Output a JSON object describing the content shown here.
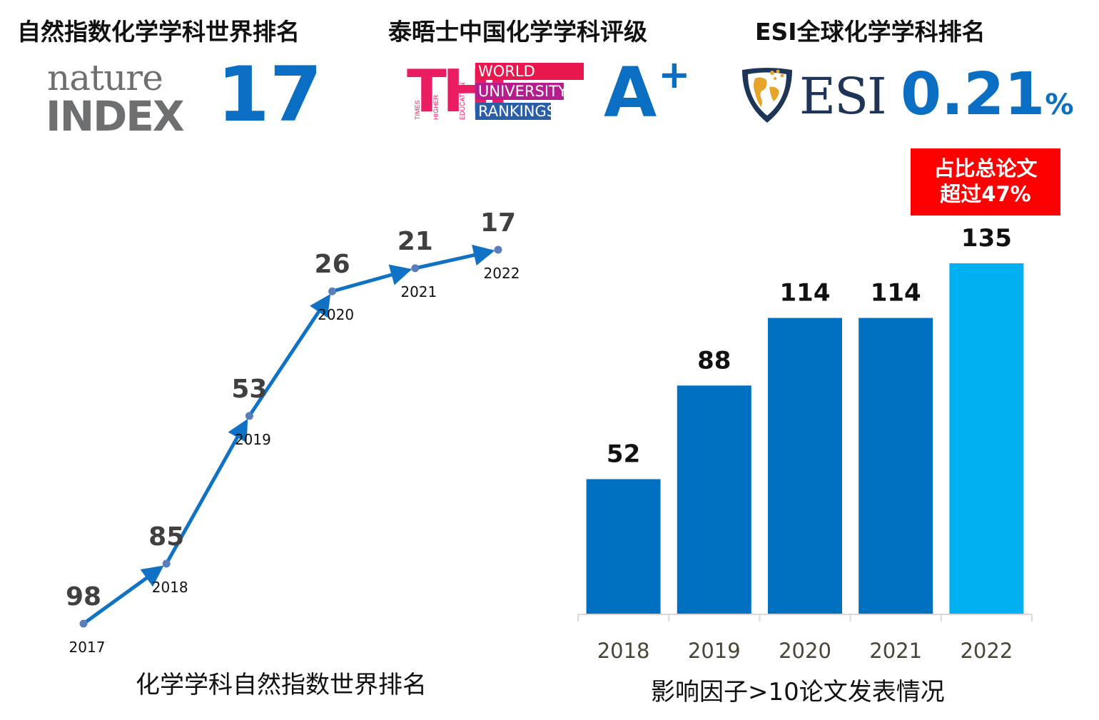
{
  "headers": {
    "nature_index": "自然指数化学学科世界排名",
    "the": "泰晤士中国化学学科评级",
    "esi": "ESI全球化学学科排名"
  },
  "nature_index_logo": {
    "line1": "nature",
    "line2": "INDEX"
  },
  "the_logo": {
    "letters": "THE",
    "small_words": [
      "TIMES",
      "HIGHER",
      "EDUCATION"
    ],
    "bands": [
      "WORLD",
      "UNIVERSITY",
      "RANKINGS"
    ],
    "band_colors": [
      "#e9174d",
      "#b51c8e",
      "#2b5ea8"
    ]
  },
  "esi_logo": {
    "text": "ESI"
  },
  "stats": {
    "nature_rank": "17",
    "the_grade": "A",
    "the_grade_sup": "+",
    "esi_percent": "0.21",
    "esi_percent_unit": "%"
  },
  "callout": {
    "line1": "占比总论文",
    "line2": "超过47%"
  },
  "colors": {
    "accent": "#0a6fc2",
    "bar": "#0070c0",
    "bar_highlight": "#00b0f0",
    "callout": "#fe0000",
    "line": "#1072c4",
    "point": "#5a7fb8"
  },
  "chart_data": [
    {
      "type": "line",
      "title": "化学学科自然指数世界排名",
      "x": [
        "2017",
        "2018",
        "2019",
        "2020",
        "2021",
        "2022"
      ],
      "values": [
        98,
        85,
        53,
        26,
        21,
        17
      ],
      "y_inverted": true,
      "arrows": true
    },
    {
      "type": "bar",
      "title": "影响因子>10论文发表情况",
      "categories": [
        "2018",
        "2019",
        "2020",
        "2021",
        "2022"
      ],
      "values": [
        52,
        88,
        114,
        114,
        135
      ],
      "highlight_index": 4,
      "ylim": [
        0,
        135
      ]
    }
  ]
}
